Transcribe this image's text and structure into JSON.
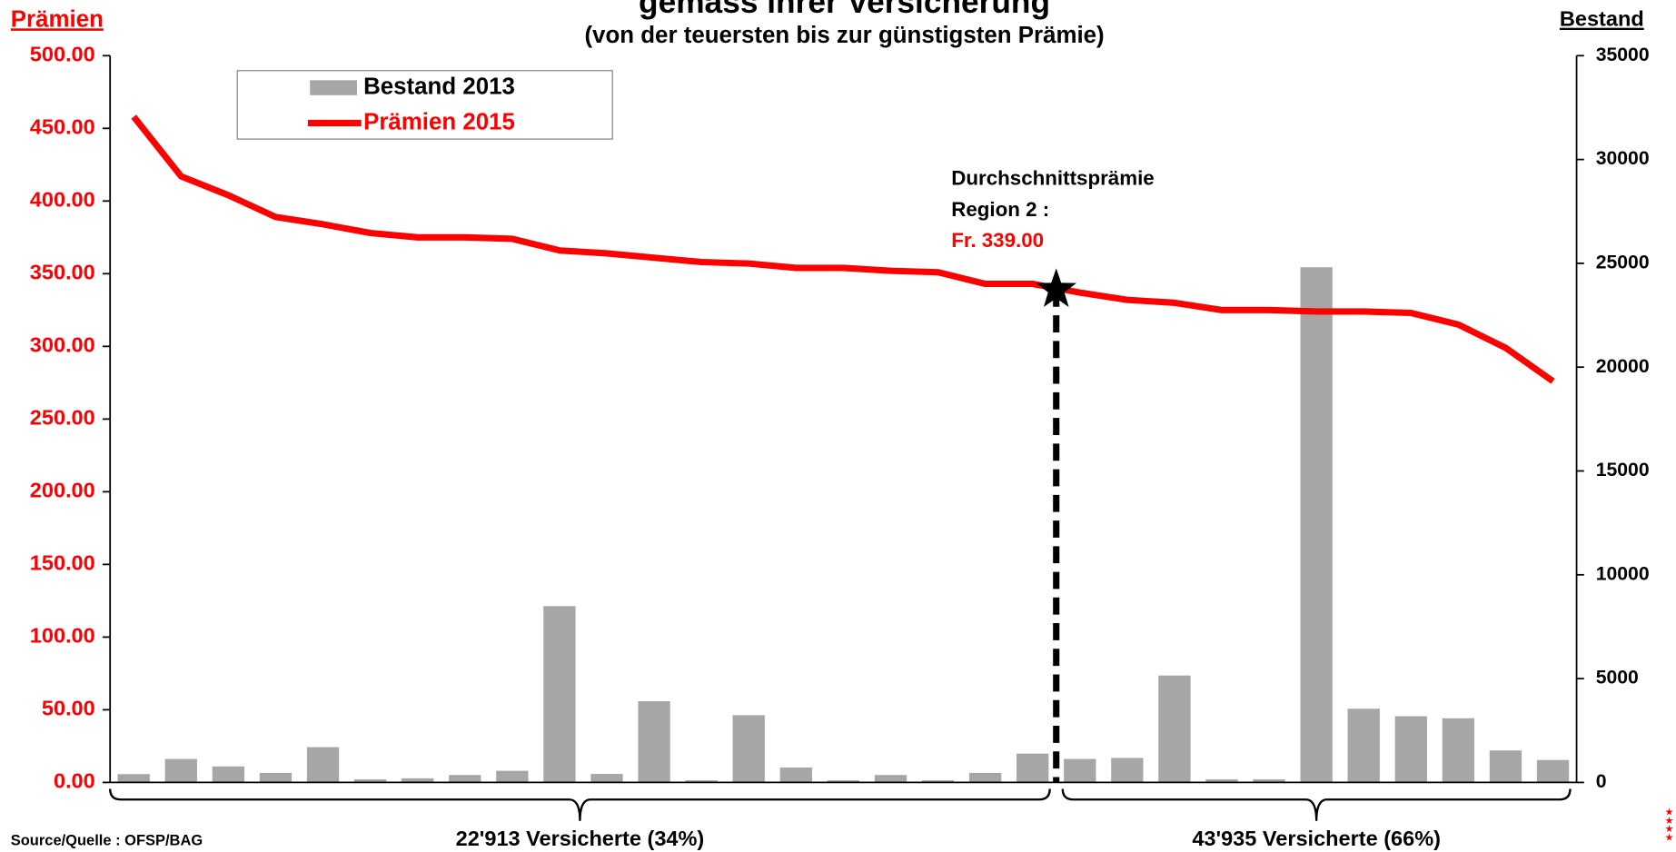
{
  "chart_data": {
    "type": "combo",
    "title": "gemäss ihrer Versicherung",
    "subtitle": "(von der teuersten bis zur günstigsten Prämie)",
    "y_label": "Prämien",
    "y2_label": "Bestand",
    "categories": [
      null,
      null,
      null,
      null,
      null,
      null,
      null,
      null,
      null,
      null,
      null,
      null,
      null,
      null,
      null,
      null,
      null,
      null,
      null,
      null,
      null,
      null,
      null,
      null,
      null,
      null,
      null,
      null,
      null,
      null,
      null
    ],
    "series": [
      {
        "name": "Bestand 2013",
        "type": "bar",
        "axis": "y2",
        "color": "#a6a6a6",
        "values": [
          400,
          1130,
          770,
          460,
          1700,
          150,
          200,
          360,
          560,
          8490,
          410,
          3910,
          100,
          3240,
          720,
          100,
          360,
          100,
          460,
          1390,
          1130,
          1180,
          5150,
          150,
          150,
          24810,
          3550,
          3190,
          3090,
          1540,
          1080
        ]
      },
      {
        "name": "Prämien 2015",
        "type": "line",
        "color": "#ff0000",
        "values": [
          458,
          417,
          404,
          389,
          384,
          378,
          375,
          375,
          374,
          366,
          364,
          361,
          358,
          357,
          354,
          354,
          352,
          351,
          343,
          343,
          337,
          332,
          330,
          325,
          325,
          324,
          324,
          323,
          315,
          299,
          276
        ]
      }
    ],
    "ylim": [
      0,
      500
    ],
    "yticks": [
      {
        "value": 0,
        "label": "0.00"
      },
      {
        "value": 50,
        "label": "50.00"
      },
      {
        "value": 100,
        "label": "100.00"
      },
      {
        "value": 150,
        "label": "150.00"
      },
      {
        "value": 200,
        "label": "200.00"
      },
      {
        "value": 250,
        "label": "250.00"
      },
      {
        "value": 300,
        "label": "300.00"
      },
      {
        "value": 350,
        "label": "350.00"
      },
      {
        "value": 400,
        "label": "400.00"
      },
      {
        "value": 450,
        "label": "450.00"
      },
      {
        "value": 500,
        "label": "500.00"
      }
    ],
    "y2lim": [
      0,
      35000
    ],
    "y2ticks": [
      0,
      5000,
      10000,
      15000,
      20000,
      25000,
      30000,
      35000
    ],
    "annotation": {
      "lines": [
        "Durchschnittsprämie",
        "Region 2 :"
      ],
      "value": 339,
      "value_label": "Fr. 339.00"
    },
    "groups": [
      "22'913 Versicherte (34%)",
      "43'935 Versicherte (66%)"
    ],
    "source": "Source/Quelle : OFSP/BAG"
  }
}
